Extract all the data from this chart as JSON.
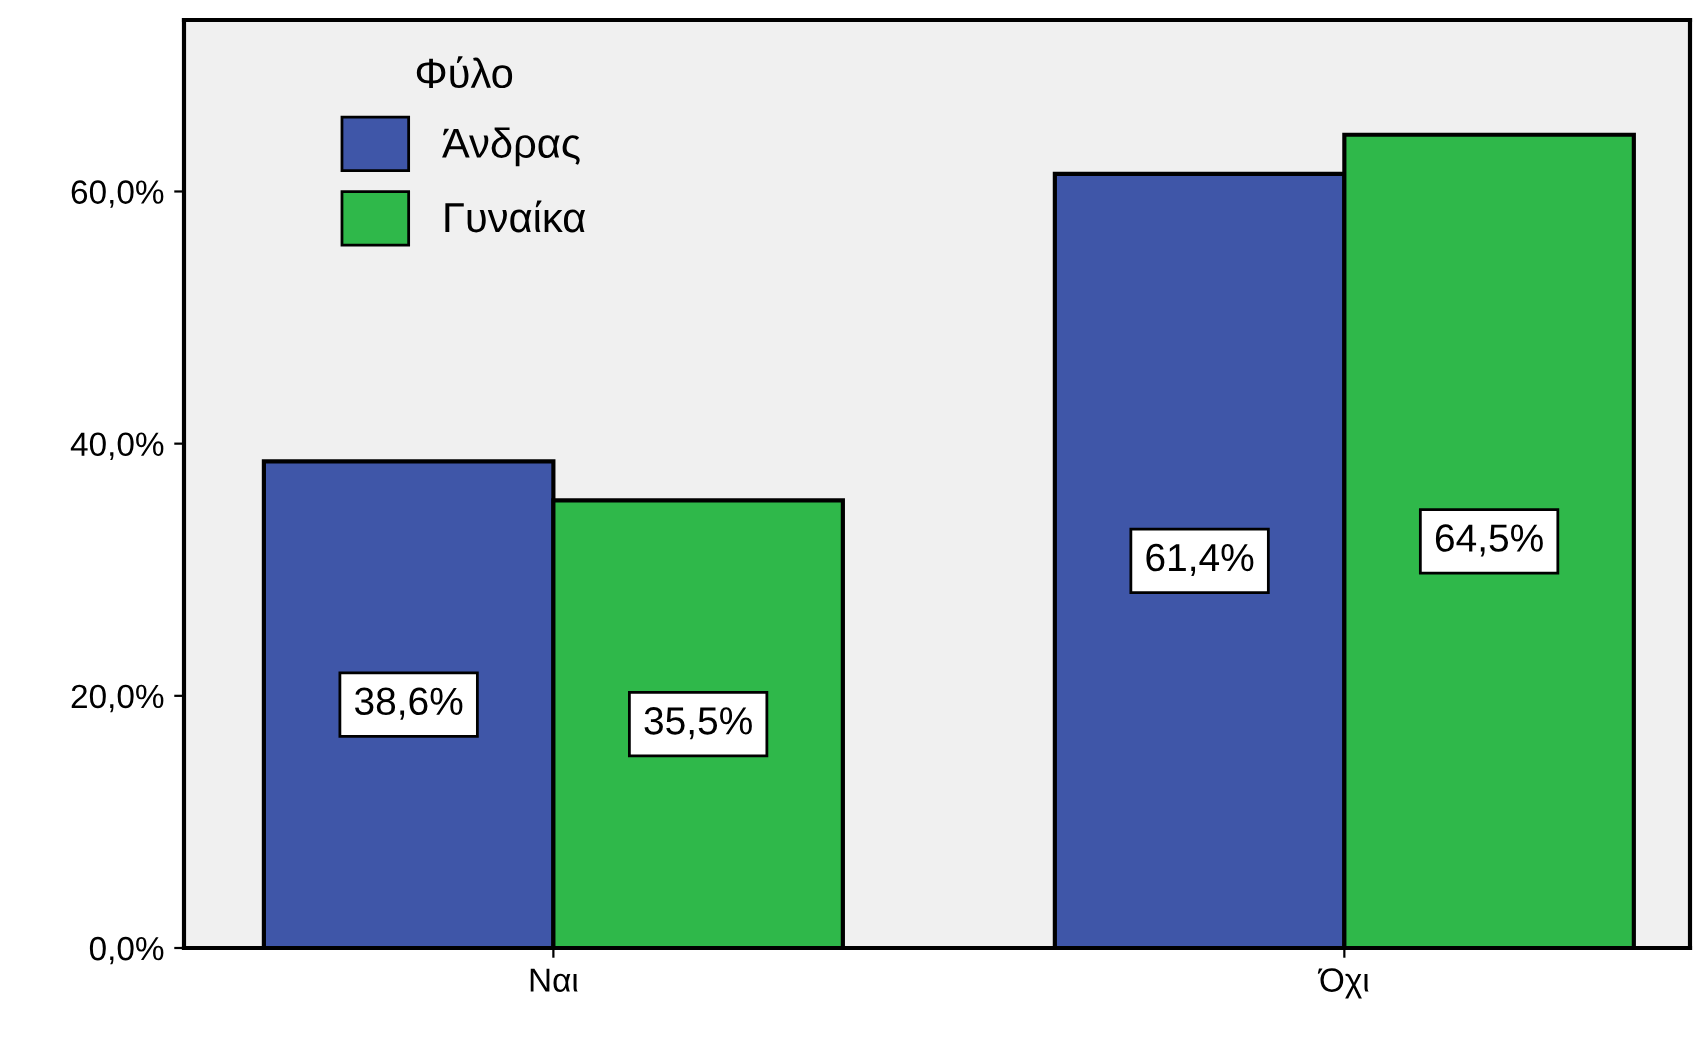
{
  "chart_data": {
    "type": "bar",
    "categories": [
      "Ναι",
      "Όχι"
    ],
    "legend_title": "Φύλο",
    "legend": "top left",
    "series": [
      {
        "name": "Άνδρας",
        "color": "#3f56a8",
        "values": [
          38.6,
          61.4
        ],
        "value_labels": [
          "38,6%",
          "61,4%"
        ]
      },
      {
        "name": "Γυναίκα",
        "color": "#2fb84a",
        "values": [
          35.5,
          64.5
        ],
        "value_labels": [
          "35,5%",
          "64,5%"
        ]
      }
    ],
    "ylim": [
      0,
      73.6
    ],
    "yticks": [
      {
        "value": 0,
        "label": "0,0%"
      },
      {
        "value": 20,
        "label": "20,0%"
      },
      {
        "value": 40,
        "label": "40,0%"
      },
      {
        "value": 60,
        "label": "60,0%"
      }
    ],
    "grid": false
  }
}
